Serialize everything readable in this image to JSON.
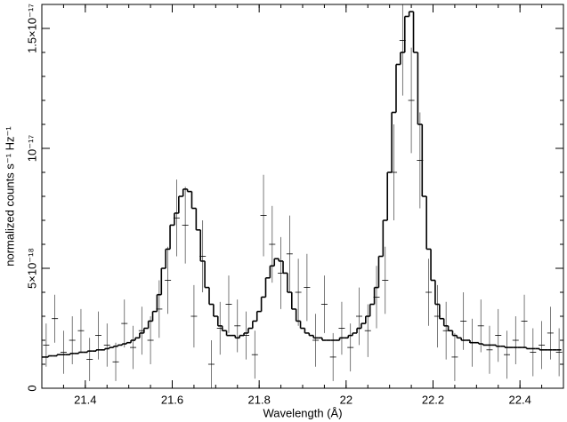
{
  "chart_data": {
    "type": "spectrum",
    "xlabel": "Wavelength (Å)",
    "ylabel": "normalized counts s⁻¹ Hz⁻¹",
    "xlim": [
      21.3,
      22.5
    ],
    "ylim": [
      0,
      1.6e-17
    ],
    "xticks": [
      21.4,
      21.6,
      21.8,
      22,
      22.2,
      22.4
    ],
    "yticks": [
      0,
      {
        "value": 5e-18,
        "label": "5×10⁻¹⁸"
      },
      {
        "value": 1e-17,
        "label": "10⁻¹⁷"
      },
      {
        "value": 1.5e-17,
        "label": "1.5×10⁻¹⁷"
      }
    ],
    "model": {
      "color": "#000000",
      "x": [
        21.3,
        21.31,
        21.32,
        21.33,
        21.34,
        21.35,
        21.36,
        21.37,
        21.38,
        21.39,
        21.4,
        21.41,
        21.42,
        21.43,
        21.44,
        21.45,
        21.46,
        21.47,
        21.48,
        21.49,
        21.5,
        21.51,
        21.52,
        21.53,
        21.54,
        21.55,
        21.56,
        21.57,
        21.58,
        21.59,
        21.6,
        21.61,
        21.62,
        21.63,
        21.64,
        21.65,
        21.66,
        21.67,
        21.68,
        21.69,
        21.7,
        21.71,
        21.72,
        21.73,
        21.74,
        21.75,
        21.76,
        21.77,
        21.78,
        21.79,
        21.8,
        21.81,
        21.82,
        21.83,
        21.84,
        21.85,
        21.86,
        21.87,
        21.88,
        21.89,
        21.9,
        21.91,
        21.92,
        21.93,
        21.94,
        21.95,
        21.96,
        21.97,
        21.98,
        21.99,
        22,
        22.01,
        22.02,
        22.03,
        22.04,
        22.05,
        22.06,
        22.07,
        22.08,
        22.09,
        22.1,
        22.11,
        22.12,
        22.13,
        22.14,
        22.15,
        22.16,
        22.17,
        22.18,
        22.19,
        22.2,
        22.21,
        22.22,
        22.23,
        22.24,
        22.25,
        22.26,
        22.27,
        22.28,
        22.29,
        22.3,
        22.31,
        22.32,
        22.33,
        22.34,
        22.35,
        22.36,
        22.37,
        22.38,
        22.39,
        22.4,
        22.41,
        22.42,
        22.43,
        22.44,
        22.45,
        22.46,
        22.47,
        22.48,
        22.49
      ],
      "values": [
        1.3e-18,
        1.3e-18,
        1.35e-18,
        1.35e-18,
        1.4e-18,
        1.4e-18,
        1.4e-18,
        1.45e-18,
        1.45e-18,
        1.5e-18,
        1.5e-18,
        1.55e-18,
        1.55e-18,
        1.6e-18,
        1.6e-18,
        1.65e-18,
        1.7e-18,
        1.75e-18,
        1.8e-18,
        1.85e-18,
        1.9e-18,
        2e-18,
        2.1e-18,
        2.3e-18,
        2.5e-18,
        2.8e-18,
        3.2e-18,
        3.9e-18,
        5e-18,
        5.8e-18,
        6.8e-18,
        7.3e-18,
        8e-18,
        8.3e-18,
        8.2e-18,
        7.5e-18,
        6.6e-18,
        5.3e-18,
        4.2e-18,
        3.5e-18,
        3e-18,
        2.6e-18,
        2.4e-18,
        2.2e-18,
        2.2e-18,
        2.1e-18,
        2.2e-18,
        2.3e-18,
        2.5e-18,
        2.8e-18,
        3.2e-18,
        3.8e-18,
        4.6e-18,
        5.1e-18,
        5.4e-18,
        5.3e-18,
        4.8e-18,
        4e-18,
        3.3e-18,
        2.8e-18,
        2.5e-18,
        2.3e-18,
        2.2e-18,
        2.1e-18,
        2.1e-18,
        2e-18,
        2e-18,
        2e-18,
        2e-18,
        2.1e-18,
        2.1e-18,
        2.2e-18,
        2.3e-18,
        2.5e-18,
        2.7e-18,
        3e-18,
        3.5e-18,
        4.2e-18,
        5.5e-18,
        7e-18,
        9e-18,
        1.15e-17,
        1.35e-17,
        1.4e-17,
        1.55e-17,
        1.57e-17,
        1.4e-17,
        1.1e-17,
        8e-18,
        5.8e-18,
        4.5e-18,
        3.5e-18,
        2.9e-18,
        2.6e-18,
        2.4e-18,
        2.2e-18,
        2.1e-18,
        2e-18,
        2e-18,
        1.9e-18,
        1.9e-18,
        1.85e-18,
        1.8e-18,
        1.8e-18,
        1.8e-18,
        1.75e-18,
        1.75e-18,
        1.7e-18,
        1.7e-18,
        1.7e-18,
        1.7e-18,
        1.7e-18,
        1.65e-18,
        1.65e-18,
        1.65e-18,
        1.6e-18,
        1.6e-18,
        1.6e-18,
        1.6e-18,
        1.6e-18
      ]
    },
    "data": {
      "color": "#000000",
      "x": [
        21.31,
        21.33,
        21.35,
        21.37,
        21.39,
        21.41,
        21.43,
        21.45,
        21.47,
        21.49,
        21.51,
        21.53,
        21.55,
        21.57,
        21.59,
        21.61,
        21.63,
        21.65,
        21.67,
        21.69,
        21.71,
        21.73,
        21.75,
        21.77,
        21.79,
        21.81,
        21.83,
        21.85,
        21.87,
        21.89,
        21.91,
        21.93,
        21.95,
        21.97,
        21.99,
        22.01,
        22.03,
        22.05,
        22.07,
        22.09,
        22.11,
        22.13,
        22.15,
        22.17,
        22.19,
        22.21,
        22.23,
        22.25,
        22.27,
        22.29,
        22.31,
        22.33,
        22.35,
        22.37,
        22.39,
        22.41,
        22.43,
        22.45,
        22.47,
        22.49
      ],
      "values": [
        1.8e-18,
        2.9e-18,
        1.5e-18,
        2e-18,
        2.4e-18,
        1.2e-18,
        2.2e-18,
        1.8e-18,
        1.1e-18,
        2.7e-18,
        1.7e-18,
        2.4e-18,
        2e-18,
        3.3e-18,
        4.5e-18,
        7.1e-18,
        6.8e-18,
        3e-18,
        5.5e-18,
        1e-18,
        2.5e-18,
        3.5e-18,
        2.6e-18,
        2.2e-18,
        1.4e-18,
        7.2e-18,
        6e-18,
        4.8e-18,
        5.6e-18,
        4e-18,
        4.2e-18,
        2e-18,
        3.5e-18,
        1.3e-18,
        2.5e-18,
        1.7e-18,
        3e-18,
        2.4e-18,
        3.8e-18,
        4.5e-18,
        9e-18,
        1.45e-17,
        1.2e-17,
        9.5e-18,
        4e-18,
        3e-18,
        2.4e-18,
        1.3e-18,
        2.8e-18,
        1.9e-18,
        2.6e-18,
        1.6e-18,
        2.2e-18,
        1.4e-18,
        2e-18,
        2.8e-18,
        1.5e-18,
        1.8e-18,
        2.3e-18,
        1.5e-18
      ],
      "errors": [
        9e-19,
        1e-18,
        9e-19,
        1e-18,
        9e-19,
        9e-19,
        1e-18,
        9e-19,
        8e-19,
        1e-18,
        9e-19,
        1e-18,
        1e-18,
        1.2e-18,
        1.4e-18,
        1.6e-18,
        1.6e-18,
        1.3e-18,
        1.5e-18,
        1e-18,
        1.1e-18,
        1.2e-18,
        1.1e-18,
        1e-18,
        1e-18,
        1.7e-18,
        1.6e-18,
        1.5e-18,
        1.6e-18,
        1.4e-18,
        1.4e-18,
        1.1e-18,
        1.2e-18,
        1e-18,
        1.1e-18,
        1e-18,
        1.2e-18,
        1.1e-18,
        1.3e-18,
        1.4e-18,
        2e-18,
        2.3e-18,
        2.2e-18,
        2e-18,
        1.4e-18,
        1.3e-18,
        1.2e-18,
        1e-18,
        1.2e-18,
        1e-18,
        1.1e-18,
        1e-18,
        1.1e-18,
        1e-18,
        1e-18,
        1.1e-18,
        1e-18,
        1e-18,
        1.1e-18,
        1e-18
      ]
    }
  }
}
